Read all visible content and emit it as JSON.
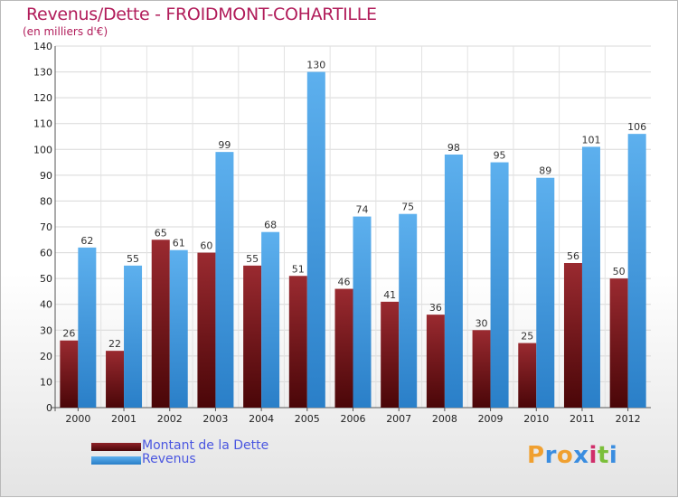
{
  "title": "Revenus/Dette - FROIDMONT-COHARTILLE",
  "subtitle": "(en milliers d'€)",
  "colors": {
    "dette": "#7a1a1e",
    "revenus": "#3f9be0",
    "title": "#b11c5a",
    "legend_text": "#4a56e0"
  },
  "legend": [
    {
      "label": "Montant de la Dette",
      "color": "#7a1a1e"
    },
    {
      "label": "Revenus",
      "color": "#3f9be0"
    }
  ],
  "logo": {
    "letters": [
      "P",
      "r",
      "o",
      "x",
      "i",
      "t",
      "i"
    ],
    "colors": [
      "#f0a030",
      "#3a8de0",
      "#f0a030",
      "#3a8de0",
      "#d02e6a",
      "#7bbf3a",
      "#3a8de0"
    ]
  },
  "chart_data": {
    "type": "bar",
    "title": "Revenus/Dette - FROIDMONT-COHARTILLE",
    "subtitle": "(en milliers d'€)",
    "categories": [
      "2000",
      "2001",
      "2002",
      "2003",
      "2004",
      "2005",
      "2006",
      "2007",
      "2008",
      "2009",
      "2010",
      "2011",
      "2012"
    ],
    "series": [
      {
        "name": "Montant de la Dette",
        "values": [
          26,
          22,
          65,
          60,
          55,
          51,
          46,
          41,
          36,
          30,
          25,
          56,
          50
        ]
      },
      {
        "name": "Revenus",
        "values": [
          62,
          55,
          61,
          99,
          68,
          130,
          74,
          75,
          98,
          95,
          89,
          101,
          106
        ]
      }
    ],
    "ylim": [
      0,
      140
    ],
    "yticks": [
      0,
      10,
      20,
      30,
      40,
      50,
      60,
      70,
      80,
      90,
      100,
      110,
      120,
      130,
      140
    ],
    "grid": true,
    "legend_position": "bottom-left"
  }
}
